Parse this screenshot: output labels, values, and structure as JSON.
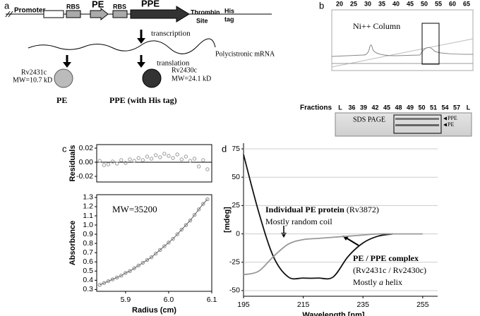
{
  "panel_labels": [
    "a",
    "b",
    "c",
    "d"
  ],
  "diagram": {
    "promoter": "Promoter",
    "rbs1": "RBS",
    "pe": "PE",
    "rbs2": "RBS",
    "ppe": "PPE",
    "thrombin": [
      "Thrombin",
      "Site"
    ],
    "his": [
      "His",
      "tag"
    ],
    "transcription": "transcription",
    "mrna": "Polycistronic mRNA",
    "translation": "translation",
    "pe_protein": {
      "id": "Rv2431c",
      "mw": "MW=10.7 kD",
      "label": "PE"
    },
    "ppe_protein": {
      "id": "Rv2430c",
      "mw": "MW=24.1 kD",
      "label": "PPE (with His tag)"
    }
  },
  "panel_b": {
    "fraction_ticks": [
      20,
      25,
      30,
      35,
      40,
      45,
      50,
      55,
      60,
      65
    ],
    "column_label": "Ni++ Column",
    "fractions_label": "Fractions",
    "lanes": [
      "L",
      "36",
      "39",
      "42",
      "45",
      "48",
      "49",
      "50",
      "51",
      "54",
      "57",
      "L"
    ],
    "gel_label": "SDS PAGE",
    "bands": [
      "PPE",
      "PE"
    ]
  },
  "chart_data": [
    {
      "type": "scatter",
      "ylabel": "Residuals",
      "x": [
        5.84,
        5.85,
        5.86,
        5.87,
        5.88,
        5.89,
        5.9,
        5.91,
        5.92,
        5.93,
        5.94,
        5.95,
        5.96,
        5.97,
        5.98,
        5.99,
        6.0,
        6.01,
        6.02,
        6.03,
        6.04,
        6.05,
        6.06,
        6.07,
        6.08,
        6.09
      ],
      "values": [
        0.002,
        -0.004,
        -0.003,
        0.001,
        -0.002,
        0.003,
        -0.001,
        0.004,
        0.002,
        0.006,
        0.003,
        0.008,
        0.005,
        0.01,
        0.007,
        0.012,
        0.009,
        0.006,
        0.011,
        0.004,
        0.008,
        0.002,
        0.005,
        -0.006,
        0.003,
        -0.01
      ],
      "color": "#999999",
      "xlim": [
        5.833,
        6.1
      ],
      "ylim": [
        -0.028,
        0.025
      ],
      "yticks": [
        0.02,
        {
          "value": 0,
          "label": "0.00"
        },
        -0.02
      ]
    },
    {
      "type": "scatter",
      "xlabel": "Radius (cm)",
      "ylabel": "Absorbance",
      "annotation": "MW=35200",
      "x": [
        5.84,
        5.85,
        5.86,
        5.87,
        5.88,
        5.89,
        5.9,
        5.91,
        5.92,
        5.93,
        5.94,
        5.95,
        5.96,
        5.97,
        5.98,
        5.99,
        6.0,
        6.01,
        6.02,
        6.03,
        6.04,
        6.05,
        6.06,
        6.07,
        6.08,
        6.09
      ],
      "values": [
        0.35,
        0.37,
        0.39,
        0.41,
        0.43,
        0.45,
        0.48,
        0.5,
        0.53,
        0.56,
        0.59,
        0.62,
        0.65,
        0.69,
        0.73,
        0.77,
        0.81,
        0.85,
        0.9,
        0.95,
        1.0,
        1.05,
        1.11,
        1.17,
        1.23,
        1.28
      ],
      "color": "#888888",
      "xlim": [
        5.833,
        6.1
      ],
      "ylim": [
        0.28,
        1.33
      ],
      "xticks": [
        5.9,
        {
          "value": 6,
          "label": "6.0"
        },
        6.1
      ],
      "yticks": [
        0.3,
        0.4,
        0.5,
        0.6,
        0.7,
        0.8,
        0.9,
        {
          "value": 1,
          "label": "1.0"
        },
        1.1,
        1.2,
        1.3
      ]
    },
    {
      "type": "line",
      "xlabel": "Wavelength [nm]",
      "ylabel": "[mdeg]",
      "x": [
        195,
        200,
        205,
        210,
        215,
        220,
        225,
        230,
        235,
        240,
        245,
        250,
        255
      ],
      "series": [
        {
          "name": "PE / PPE complex",
          "color": "#111111",
          "values": [
            70,
            20,
            -20,
            -38,
            -39,
            -39,
            -38,
            -20,
            -8,
            -2,
            0,
            null,
            null
          ]
        },
        {
          "name": "Individual PE protein",
          "color": "#999999",
          "values": [
            -36,
            -33,
            -20,
            -9,
            -5,
            -4,
            -3,
            -2,
            -1,
            0,
            0,
            0,
            0
          ]
        }
      ],
      "xlim": [
        195,
        260
      ],
      "ylim": [
        -55,
        80
      ],
      "xticks": [
        195,
        215,
        235,
        255
      ],
      "yticks": [
        75,
        50,
        25,
        0,
        -25,
        -50
      ],
      "grid": true,
      "annotations": {
        "pe": [
          "Individual PE protein",
          "(Rv3872)",
          "Mostly random coil"
        ],
        "complex": [
          "PE / PPE complex",
          "(Rv2431c / Rv2430c)",
          "Mostly",
          "a",
          "helix"
        ]
      }
    }
  ]
}
